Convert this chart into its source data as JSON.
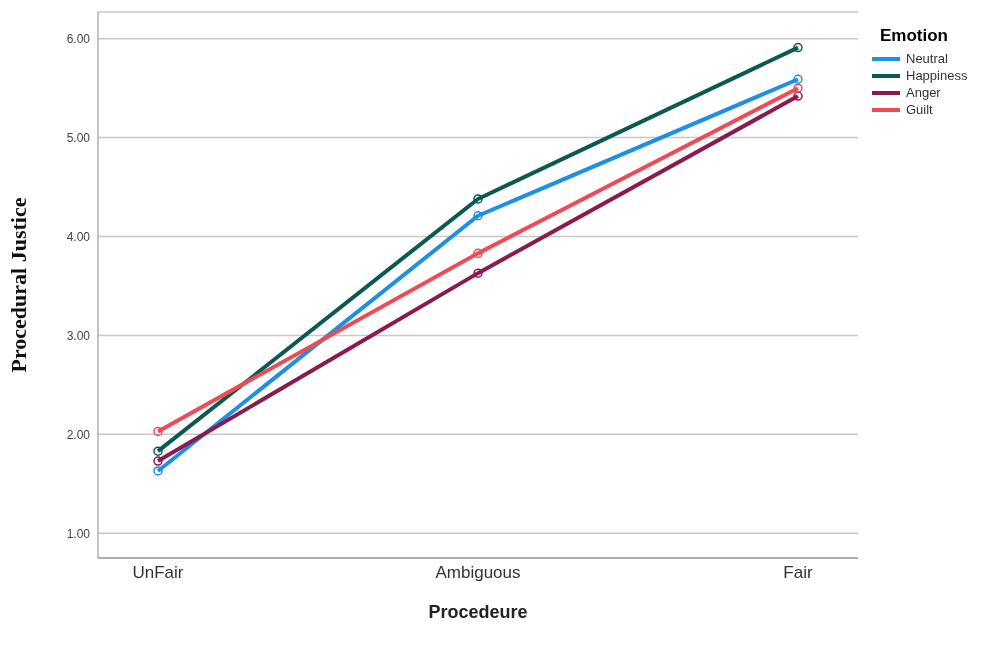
{
  "chart_data": {
    "type": "line",
    "xlabel": "Procedeure",
    "ylabel": "Procedural Justice",
    "legend_title": "Emotion",
    "categories": [
      "UnFair",
      "Ambiguous",
      "Fair"
    ],
    "series": [
      {
        "name": "Neutral",
        "color": "#1e8fe6",
        "values": [
          1.63,
          4.21,
          5.59
        ]
      },
      {
        "name": "Happiness",
        "color": "#0b5a52",
        "values": [
          1.83,
          4.38,
          5.91
        ]
      },
      {
        "name": "Anger",
        "color": "#8b1a4f",
        "values": [
          1.73,
          3.63,
          5.42
        ]
      },
      {
        "name": "Guilt",
        "color": "#f04b55",
        "values": [
          2.03,
          3.83,
          5.5
        ]
      }
    ],
    "ylim": [
      0.75,
      6.27
    ],
    "yticks": [
      {
        "value": 1,
        "label": "1.00"
      },
      {
        "value": 2,
        "label": "2.00"
      },
      {
        "value": 3,
        "label": "3.00"
      },
      {
        "value": 4,
        "label": "4.00"
      },
      {
        "value": 5,
        "label": "5.00"
      },
      {
        "value": 6,
        "label": "6.00"
      }
    ],
    "grid": "y",
    "legend": "top right",
    "marker": "circle",
    "line_style": "solid"
  }
}
